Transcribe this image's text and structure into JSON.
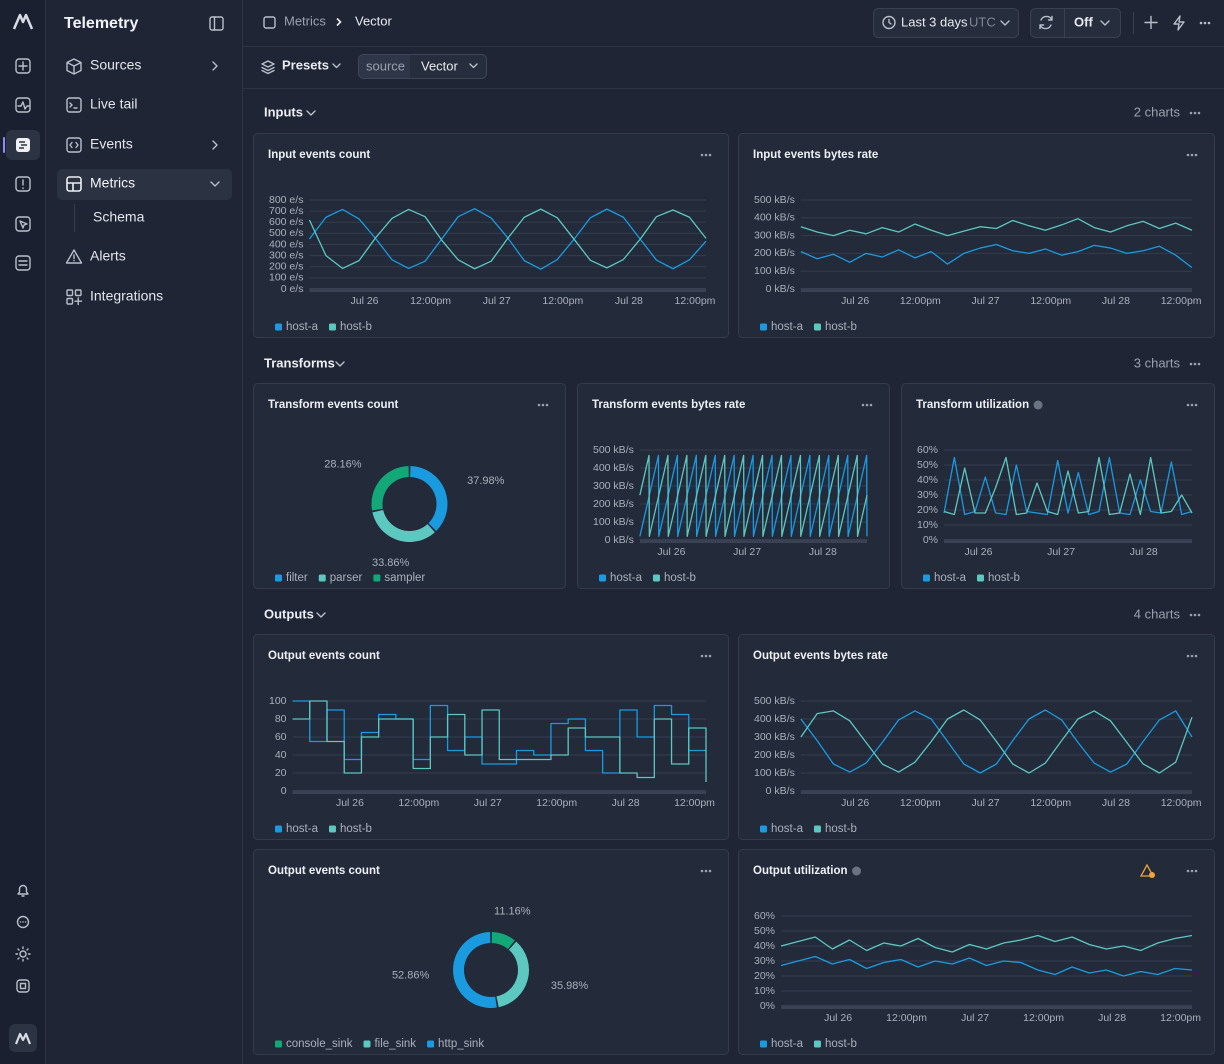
{
  "sidebar": {
    "brand": "Telemetry",
    "items": [
      "Sources",
      "Live tail",
      "Events",
      "Metrics",
      "Alerts",
      "Integrations"
    ],
    "subitems": [
      "Schema"
    ]
  },
  "header": {
    "breadcrumb": [
      "Metrics",
      "Vector"
    ],
    "time_range": "Last 3 days",
    "timezone": "UTC",
    "refresh": "Off"
  },
  "toolbar": {
    "presets": "Presets",
    "filter": {
      "key": "source",
      "value": "Vector"
    }
  },
  "sections": [
    {
      "title": "Inputs",
      "count": "2 charts"
    },
    {
      "title": "Transforms",
      "count": "3 charts"
    },
    {
      "title": "Outputs",
      "count": "4 charts"
    }
  ],
  "chart_data": [
    {
      "type": "line",
      "title": "Input events count",
      "x": [
        0,
        3,
        6,
        9,
        12,
        15,
        18,
        21,
        24,
        27,
        30,
        33,
        36,
        39,
        42,
        45,
        48,
        51,
        54,
        57,
        60,
        63,
        66,
        69,
        72
      ],
      "xlim": [
        0,
        72
      ],
      "xticks": [
        {
          "value": 10,
          "label": "Jul 26"
        },
        {
          "value": 22,
          "label": "12:00pm"
        },
        {
          "value": 34,
          "label": "Jul 27"
        },
        {
          "value": 46,
          "label": "12:00pm"
        },
        {
          "value": 58,
          "label": "Jul 28"
        },
        {
          "value": 70,
          "label": "12:00pm"
        }
      ],
      "ylim": [
        0,
        800
      ],
      "yticks": [
        {
          "value": 0,
          "label": "0 e/s"
        },
        {
          "value": 100,
          "label": "100 e/s"
        },
        {
          "value": 200,
          "label": "200 e/s"
        },
        {
          "value": 300,
          "label": "300 e/s"
        },
        {
          "value": 400,
          "label": "400 e/s"
        },
        {
          "value": 500,
          "label": "500 e/s"
        },
        {
          "value": 600,
          "label": "600 e/s"
        },
        {
          "value": 700,
          "label": "700 e/s"
        },
        {
          "value": 800,
          "label": "800 e/s"
        }
      ],
      "grid": true,
      "series": [
        {
          "name": "host-a",
          "color": "#1a9be0",
          "values": [
            450,
            645,
            715,
            630,
            455,
            262,
            185,
            250,
            448,
            650,
            722,
            638,
            460,
            255,
            178,
            265,
            445,
            640,
            718,
            645,
            452,
            260,
            182,
            262,
            430
          ]
        },
        {
          "name": "host-b",
          "color": "#5cc8c0",
          "values": [
            620,
            300,
            185,
            255,
            460,
            635,
            715,
            650,
            440,
            262,
            182,
            250,
            455,
            645,
            718,
            640,
            450,
            258,
            190,
            265,
            445,
            650,
            710,
            645,
            455
          ]
        }
      ]
    },
    {
      "type": "line",
      "title": "Input events bytes rate",
      "x": [
        0,
        3,
        6,
        9,
        12,
        15,
        18,
        21,
        24,
        27,
        30,
        33,
        36,
        39,
        42,
        45,
        48,
        51,
        54,
        57,
        60,
        63,
        66,
        69,
        72
      ],
      "xlim": [
        0,
        72
      ],
      "xticks": [
        {
          "value": 10,
          "label": "Jul 26"
        },
        {
          "value": 22,
          "label": "12:00pm"
        },
        {
          "value": 34,
          "label": "Jul 27"
        },
        {
          "value": 46,
          "label": "12:00pm"
        },
        {
          "value": 58,
          "label": "Jul 28"
        },
        {
          "value": 70,
          "label": "12:00pm"
        }
      ],
      "ylim": [
        0,
        500
      ],
      "yticks": [
        {
          "value": 0,
          "label": "0 kB/s"
        },
        {
          "value": 100,
          "label": "100 kB/s"
        },
        {
          "value": 200,
          "label": "200 kB/s"
        },
        {
          "value": 300,
          "label": "300 kB/s"
        },
        {
          "value": 400,
          "label": "400 kB/s"
        },
        {
          "value": 500,
          "label": "500 kB/s"
        }
      ],
      "grid": true,
      "series": [
        {
          "name": "host-a",
          "color": "#1a9be0",
          "values": [
            210,
            170,
            195,
            150,
            200,
            180,
            220,
            175,
            210,
            140,
            200,
            230,
            250,
            215,
            200,
            225,
            190,
            210,
            245,
            230,
            200,
            215,
            240,
            190,
            120
          ]
        },
        {
          "name": "host-b",
          "color": "#5cc8c0",
          "values": [
            350,
            320,
            300,
            330,
            310,
            345,
            320,
            365,
            330,
            300,
            325,
            350,
            340,
            385,
            355,
            330,
            360,
            395,
            345,
            320,
            355,
            380,
            340,
            370,
            330
          ]
        }
      ]
    },
    {
      "type": "pie",
      "title": "Transform events count",
      "categories": [
        "filter",
        "parser",
        "sampler"
      ],
      "values": [
        37.98,
        33.86,
        28.16
      ],
      "value_labels": [
        "37.98%",
        "33.86%",
        "28.16%"
      ],
      "colors": [
        "#1a9be0",
        "#5cc8c0",
        "#12a877"
      ]
    },
    {
      "type": "line",
      "title": "Transform events bytes rate",
      "x": [
        0,
        2.9,
        3,
        5.9,
        6,
        8.9,
        9,
        11.9,
        12,
        14.9,
        15,
        17.9,
        18,
        20.9,
        21,
        23.9,
        24,
        26.9,
        27,
        29.9,
        30,
        32.9,
        33,
        35.9,
        36,
        38.9,
        39,
        41.9,
        42,
        44.9,
        45,
        47.9,
        48,
        50.9,
        51,
        53.9,
        54,
        56.9,
        57,
        59.9,
        60,
        62.9,
        63,
        65.9,
        66,
        68.9,
        69,
        71.9,
        72
      ],
      "xlim": [
        0,
        72
      ],
      "xticks": [
        {
          "value": 10,
          "label": "Jul 26"
        },
        {
          "value": 34,
          "label": "Jul 27"
        },
        {
          "value": 58,
          "label": "Jul 28"
        }
      ],
      "ylim": [
        0,
        500
      ],
      "yticks": [
        {
          "value": 0,
          "label": "0 kB/s"
        },
        {
          "value": 100,
          "label": "100 kB/s"
        },
        {
          "value": 200,
          "label": "200 kB/s"
        },
        {
          "value": 300,
          "label": "300 kB/s"
        },
        {
          "value": 400,
          "label": "400 kB/s"
        },
        {
          "value": 500,
          "label": "500 kB/s"
        }
      ],
      "grid": true,
      "series": [
        {
          "name": "host-a",
          "color": "#1a9be0",
          "values": [
            20,
            241,
            249,
            470,
            20,
            241,
            249,
            470,
            20,
            241,
            249,
            470,
            20,
            241,
            249,
            470,
            20,
            241,
            249,
            470,
            20,
            241,
            249,
            470,
            20,
            241,
            249,
            470,
            20,
            241,
            249,
            470,
            20,
            241,
            249,
            470,
            20,
            241,
            249,
            470,
            20,
            241,
            249,
            470,
            20,
            241,
            249,
            470,
            20
          ]
        },
        {
          "name": "host-b",
          "color": "#5cc8c0",
          "values": [
            249,
            470,
            20,
            241,
            249,
            470,
            20,
            241,
            249,
            470,
            20,
            241,
            249,
            470,
            20,
            241,
            249,
            470,
            20,
            241,
            249,
            470,
            20,
            241,
            249,
            470,
            20,
            241,
            249,
            470,
            20,
            241,
            249,
            470,
            20,
            241,
            249,
            470,
            20,
            241,
            249,
            470,
            20,
            241,
            249,
            470,
            20,
            241,
            249
          ]
        }
      ]
    },
    {
      "type": "line",
      "title": "Transform utilization",
      "x": [
        0,
        3,
        6,
        9,
        12,
        15,
        18,
        21,
        24,
        27,
        30,
        33,
        36,
        39,
        42,
        45,
        48,
        51,
        54,
        57,
        60,
        63,
        66,
        69,
        72
      ],
      "xlim": [
        0,
        72
      ],
      "xticks": [
        {
          "value": 10,
          "label": "Jul 26"
        },
        {
          "value": 34,
          "label": "Jul 27"
        },
        {
          "value": 58,
          "label": "Jul 28"
        }
      ],
      "ylim": [
        0,
        60
      ],
      "yticks": [
        {
          "value": 0,
          "label": "0%"
        },
        {
          "value": 10,
          "label": "10%"
        },
        {
          "value": 20,
          "label": "20%"
        },
        {
          "value": 30,
          "label": "30%"
        },
        {
          "value": 40,
          "label": "40%"
        },
        {
          "value": 50,
          "label": "50%"
        },
        {
          "value": 60,
          "label": "60%"
        }
      ],
      "grid": true,
      "series": [
        {
          "name": "host-a",
          "color": "#1a9be0",
          "values": [
            18,
            55,
            17,
            19,
            42,
            18,
            17,
            50,
            19,
            18,
            17,
            53,
            18,
            45,
            17,
            19,
            55,
            18,
            17,
            40,
            19,
            18,
            52,
            17,
            19
          ]
        },
        {
          "name": "host-b",
          "color": "#5cc8c0",
          "values": [
            19,
            17,
            48,
            18,
            18,
            35,
            55,
            17,
            18,
            38,
            19,
            17,
            46,
            18,
            19,
            55,
            17,
            18,
            44,
            17,
            55,
            18,
            19,
            30,
            18
          ]
        }
      ]
    },
    {
      "type": "line",
      "title": "Output events count",
      "step": true,
      "x": [
        0,
        3,
        6,
        9,
        12,
        15,
        18,
        21,
        24,
        27,
        30,
        33,
        36,
        39,
        42,
        45,
        48,
        51,
        54,
        57,
        60,
        63,
        66,
        69,
        72
      ],
      "xlim": [
        0,
        72
      ],
      "xticks": [
        {
          "value": 10,
          "label": "Jul 26"
        },
        {
          "value": 22,
          "label": "12:00pm"
        },
        {
          "value": 34,
          "label": "Jul 27"
        },
        {
          "value": 46,
          "label": "12:00pm"
        },
        {
          "value": 58,
          "label": "Jul 28"
        },
        {
          "value": 70,
          "label": "12:00pm"
        }
      ],
      "ylim": [
        0,
        100
      ],
      "yticks": [
        0,
        20,
        40,
        60,
        80,
        100
      ],
      "grid": true,
      "series": [
        {
          "name": "host-a",
          "color": "#1a9be0",
          "values": [
            100,
            55,
            90,
            35,
            65,
            85,
            80,
            35,
            95,
            45,
            60,
            30,
            30,
            45,
            40,
            75,
            80,
            45,
            20,
            90,
            60,
            95,
            85,
            45,
            45
          ]
        },
        {
          "name": "host-b",
          "color": "#5cc8c0",
          "values": [
            80,
            100,
            55,
            20,
            60,
            80,
            80,
            25,
            60,
            85,
            40,
            90,
            35,
            35,
            35,
            40,
            70,
            60,
            60,
            20,
            15,
            80,
            30,
            70,
            10
          ]
        }
      ]
    },
    {
      "type": "line",
      "title": "Output events bytes rate",
      "x": [
        0,
        3,
        6,
        9,
        12,
        15,
        18,
        21,
        24,
        27,
        30,
        33,
        36,
        39,
        42,
        45,
        48,
        51,
        54,
        57,
        60,
        63,
        66,
        69,
        72
      ],
      "xlim": [
        0,
        72
      ],
      "xticks": [
        {
          "value": 10,
          "label": "Jul 26"
        },
        {
          "value": 22,
          "label": "12:00pm"
        },
        {
          "value": 34,
          "label": "Jul 27"
        },
        {
          "value": 46,
          "label": "12:00pm"
        },
        {
          "value": 58,
          "label": "Jul 28"
        },
        {
          "value": 70,
          "label": "12:00pm"
        }
      ],
      "ylim": [
        0,
        500
      ],
      "yticks": [
        {
          "value": 0,
          "label": "0 kB/s"
        },
        {
          "value": 100,
          "label": "100 kB/s"
        },
        {
          "value": 200,
          "label": "200 kB/s"
        },
        {
          "value": 300,
          "label": "300 kB/s"
        },
        {
          "value": 400,
          "label": "400 kB/s"
        },
        {
          "value": 500,
          "label": "500 kB/s"
        }
      ],
      "grid": true,
      "series": [
        {
          "name": "host-a",
          "color": "#1a9be0",
          "values": [
            400,
            280,
            150,
            105,
            155,
            270,
            395,
            445,
            400,
            275,
            150,
            100,
            150,
            280,
            400,
            450,
            395,
            270,
            155,
            105,
            150,
            275,
            395,
            445,
            300
          ]
        },
        {
          "name": "host-b",
          "color": "#5cc8c0",
          "values": [
            300,
            430,
            445,
            390,
            270,
            150,
            105,
            160,
            275,
            400,
            450,
            395,
            275,
            150,
            100,
            155,
            280,
            400,
            445,
            390,
            270,
            150,
            100,
            160,
            410
          ]
        }
      ]
    },
    {
      "type": "pie",
      "title": "Output events count",
      "categories": [
        "console_sink",
        "file_sink",
        "http_sink"
      ],
      "values": [
        11.16,
        35.98,
        52.86
      ],
      "value_labels": [
        "11.16%",
        "35.98%",
        "52.86%"
      ],
      "colors": [
        "#12a877",
        "#5cc8c0",
        "#1a9be0"
      ]
    },
    {
      "type": "line",
      "title": "Output utilization",
      "x": [
        0,
        3,
        6,
        9,
        12,
        15,
        18,
        21,
        24,
        27,
        30,
        33,
        36,
        39,
        42,
        45,
        48,
        51,
        54,
        57,
        60,
        63,
        66,
        69,
        72
      ],
      "xlim": [
        0,
        72
      ],
      "xticks": [
        {
          "value": 10,
          "label": "Jul 26"
        },
        {
          "value": 22,
          "label": "12:00pm"
        },
        {
          "value": 34,
          "label": "Jul 27"
        },
        {
          "value": 46,
          "label": "12:00pm"
        },
        {
          "value": 58,
          "label": "Jul 28"
        },
        {
          "value": 70,
          "label": "12:00pm"
        }
      ],
      "ylim": [
        0,
        60
      ],
      "yticks": [
        {
          "value": 0,
          "label": "0%"
        },
        {
          "value": 10,
          "label": "10%"
        },
        {
          "value": 20,
          "label": "20%"
        },
        {
          "value": 30,
          "label": "30%"
        },
        {
          "value": 40,
          "label": "40%"
        },
        {
          "value": 50,
          "label": "50%"
        },
        {
          "value": 60,
          "label": "60%"
        }
      ],
      "grid": true,
      "series": [
        {
          "name": "host-a",
          "color": "#1a9be0",
          "values": [
            27,
            30,
            33,
            28,
            31,
            25,
            29,
            31,
            26,
            30,
            28,
            32,
            27,
            30,
            29,
            24,
            21,
            26,
            22,
            24,
            20,
            23,
            21,
            25,
            24
          ]
        },
        {
          "name": "host-b",
          "color": "#5cc8c0",
          "values": [
            40,
            43,
            46,
            38,
            44,
            37,
            42,
            40,
            45,
            39,
            36,
            41,
            38,
            42,
            44,
            47,
            43,
            46,
            41,
            38,
            40,
            37,
            42,
            45,
            47
          ]
        }
      ]
    }
  ]
}
